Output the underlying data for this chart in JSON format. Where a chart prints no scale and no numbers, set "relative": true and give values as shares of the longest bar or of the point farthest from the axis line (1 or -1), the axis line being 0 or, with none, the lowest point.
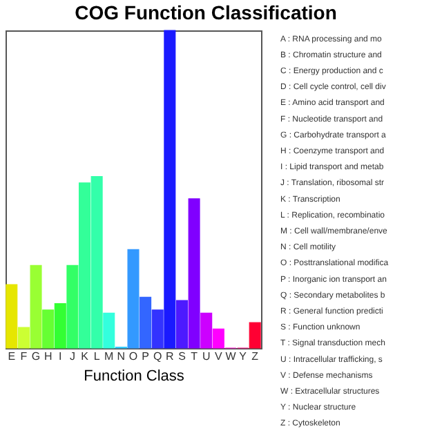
{
  "chart_data": {
    "type": "bar",
    "title": "COG Function Classification",
    "xlabel": "Function Class",
    "relative": true,
    "grid": false,
    "categories": [
      "E",
      "F",
      "G",
      "H",
      "I",
      "J",
      "K",
      "L",
      "M",
      "N",
      "O",
      "P",
      "Q",
      "R",
      "S",
      "T",
      "U",
      "V",
      "W",
      "Y",
      "Z"
    ],
    "values": [
      0.2,
      0.065,
      0.26,
      0.12,
      0.14,
      0.26,
      0.52,
      0.54,
      0.11,
      0.003,
      0.31,
      0.16,
      0.12,
      1,
      0.15,
      0.47,
      0.11,
      0.06,
      0,
      0,
      0.08
    ],
    "colors": [
      "#e6e600",
      "#ccff33",
      "#99ff33",
      "#66ff33",
      "#33ff33",
      "#33ff66",
      "#33ff99",
      "#33ffaa",
      "#33ffdd",
      "#33ccff",
      "#3399ff",
      "#3366ff",
      "#3333ff",
      "#1a1aff",
      "#4d1aff",
      "#8000ff",
      "#cc00ff",
      "#ff00ff",
      "#ff00cc",
      "#ff0080",
      "#ff0033"
    ],
    "annotations": [
      "A : RNA processing and mo",
      "B : Chromatin structure and",
      "C : Energy production and c",
      "D : Cell cycle control, cell div",
      "E : Amino acid transport and",
      "F : Nucleotide transport and",
      "G : Carbohydrate transport a",
      "H : Coenzyme transport and",
      "I : Lipid transport and metab",
      "J : Translation, ribosomal str",
      "K : Transcription",
      "L : Replication, recombinatio",
      "M : Cell wall/membrane/enve",
      "N : Cell motility",
      "O : Posttranslational modifica",
      "P : Inorganic ion transport an",
      "Q : Secondary metabolites b",
      "R : General function predicti",
      "S : Function unknown",
      "T : Signal transduction mech",
      "U : Intracellular trafficking, s",
      "V : Defense mechanisms",
      "W : Extracellular structures",
      "Y : Nuclear structure",
      "Z : Cytoskeleton"
    ]
  }
}
